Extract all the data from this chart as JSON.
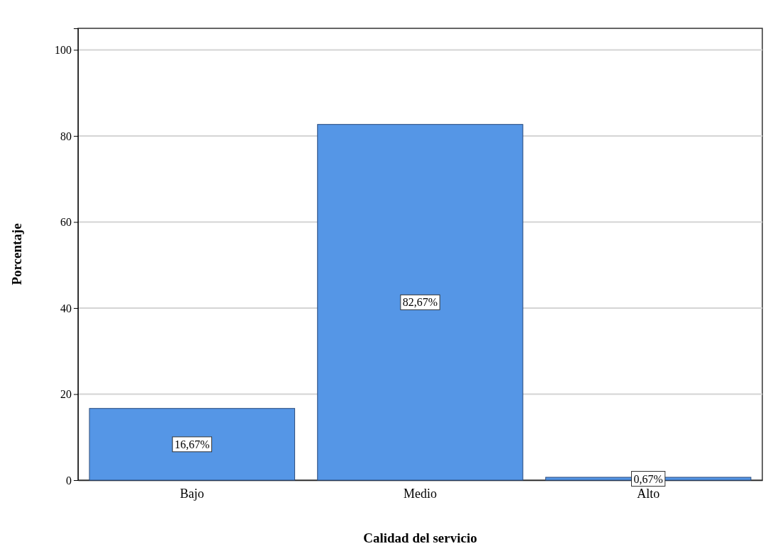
{
  "chart_data": {
    "type": "bar",
    "xlabel": "Calidad del servicio",
    "ylabel": "Porcentaje",
    "categories": [
      "Bajo",
      "Medio",
      "Alto"
    ],
    "values": [
      16.67,
      82.67,
      0.67
    ],
    "value_labels": [
      "16,67%",
      "82,67%",
      "0,67%"
    ],
    "color": "#5596e6",
    "ylim": [
      0,
      105
    ],
    "yticks": [
      0,
      20,
      40,
      60,
      80,
      100
    ],
    "grid": "y"
  }
}
